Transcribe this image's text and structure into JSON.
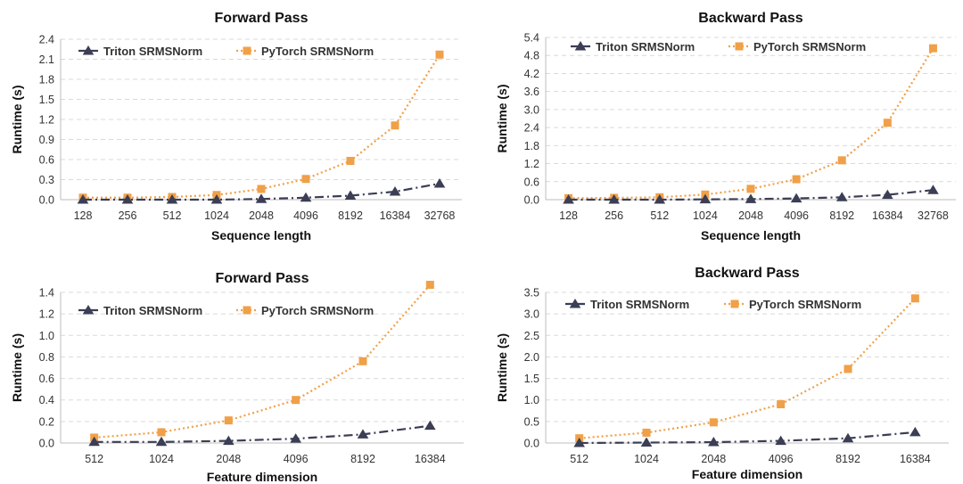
{
  "colors": {
    "triton": "#3b3e54",
    "pytorch": "#f0a048"
  },
  "chart_data": [
    {
      "type": "line",
      "title": "Forward Pass",
      "xlabel": "Sequence length",
      "ylabel": "Runtime (s)",
      "categories": [
        "128",
        "256",
        "512",
        "1024",
        "2048",
        "4096",
        "8192",
        "16384",
        "32768"
      ],
      "ylim": [
        0,
        2.4
      ],
      "yticks": [
        "0.0",
        "0.3",
        "0.6",
        "0.9",
        "1.2",
        "1.5",
        "1.8",
        "2.1",
        "2.4"
      ],
      "legend": "top-left",
      "series": [
        {
          "name": "Triton SRMSNorm",
          "values": [
            0.0,
            0.0,
            0.0,
            0.0,
            0.01,
            0.03,
            0.06,
            0.12,
            0.24
          ]
        },
        {
          "name": "PyTorch SRMSNorm",
          "values": [
            0.03,
            0.03,
            0.04,
            0.07,
            0.16,
            0.31,
            0.58,
            1.11,
            2.17
          ]
        }
      ]
    },
    {
      "type": "line",
      "title": "Backward Pass",
      "xlabel": "Sequence length",
      "ylabel": "Runtime (s)",
      "categories": [
        "128",
        "256",
        "512",
        "1024",
        "2048",
        "4096",
        "8192",
        "16384",
        "32768"
      ],
      "ylim": [
        0,
        5.4
      ],
      "yticks": [
        "0.0",
        "0.6",
        "1.2",
        "1.8",
        "2.4",
        "3.0",
        "3.6",
        "4.2",
        "4.8",
        "5.4"
      ],
      "legend": "top-left",
      "series": [
        {
          "name": "Triton SRMSNorm",
          "values": [
            0.0,
            0.0,
            0.0,
            0.01,
            0.02,
            0.04,
            0.08,
            0.16,
            0.32
          ]
        },
        {
          "name": "PyTorch SRMSNorm",
          "values": [
            0.05,
            0.06,
            0.08,
            0.17,
            0.36,
            0.68,
            1.31,
            2.56,
            5.04
          ]
        }
      ]
    },
    {
      "type": "line",
      "title": "Forward Pass",
      "xlabel": "Feature dimension",
      "ylabel": "Runtime (s)",
      "categories": [
        "512",
        "1024",
        "2048",
        "4096",
        "8192",
        "16384"
      ],
      "ylim": [
        0,
        1.4
      ],
      "yticks": [
        "0.0",
        "0.2",
        "0.4",
        "0.6",
        "0.8",
        "1.0",
        "1.2",
        "1.4"
      ],
      "legend": "top-left",
      "series": [
        {
          "name": "Triton SRMSNorm",
          "values": [
            0.01,
            0.01,
            0.02,
            0.04,
            0.08,
            0.16
          ]
        },
        {
          "name": "PyTorch SRMSNorm",
          "values": [
            0.05,
            0.1,
            0.21,
            0.4,
            0.76,
            1.47
          ]
        }
      ]
    },
    {
      "type": "line",
      "title": "Backward Pass",
      "xlabel": "Feature dimension",
      "ylabel": "Runtime (s)",
      "categories": [
        "512",
        "1024",
        "2048",
        "4096",
        "8192",
        "16384"
      ],
      "ylim": [
        0,
        3.5
      ],
      "yticks": [
        "0.0",
        "0.5",
        "1.0",
        "1.5",
        "2.0",
        "2.5",
        "3.0",
        "3.5"
      ],
      "legend": "top-left",
      "series": [
        {
          "name": "Triton SRMSNorm",
          "values": [
            0.0,
            0.01,
            0.02,
            0.05,
            0.11,
            0.25
          ]
        },
        {
          "name": "PyTorch SRMSNorm",
          "values": [
            0.11,
            0.24,
            0.48,
            0.9,
            1.72,
            3.36
          ]
        }
      ]
    }
  ]
}
